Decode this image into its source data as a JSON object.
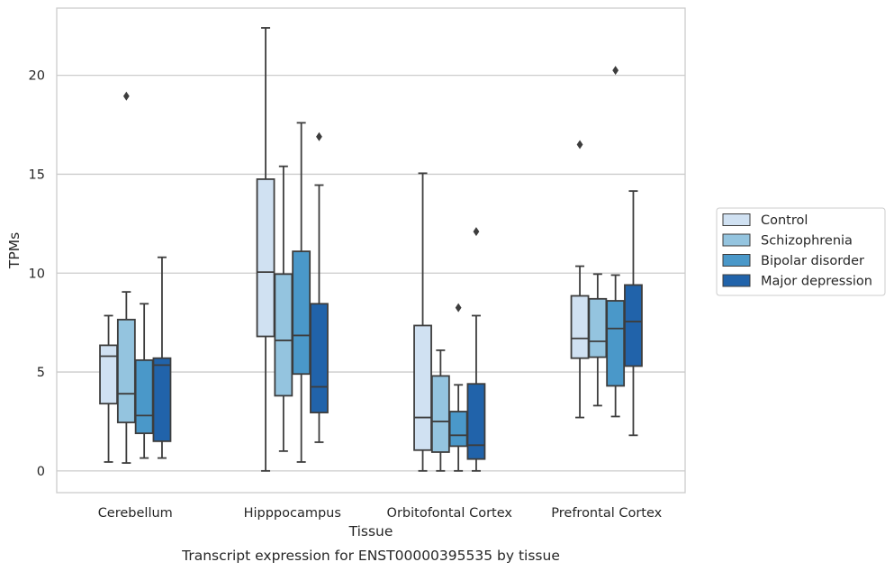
{
  "caption": "Transcript expression for ENST00000395535 by tissue",
  "chart_data": {
    "type": "box",
    "title": "",
    "xlabel": "Tissue",
    "ylabel": "TPMs",
    "ylim": [
      -1.1,
      23.4
    ],
    "yticks": [
      0,
      5,
      10,
      15,
      20
    ],
    "grid": "horizontal",
    "legend_position": "right",
    "categories": [
      "Cerebellum",
      "Hipppocampus",
      "Orbitofontal Cortex",
      "Prefrontal Cortex"
    ],
    "series": [
      {
        "name": "Control",
        "color": "#d0e1f2",
        "boxes": [
          {
            "whisker_low": 0.45,
            "q1": 3.4,
            "median": 5.8,
            "q3": 6.35,
            "whisker_high": 7.85,
            "outliers": []
          },
          {
            "whisker_low": 0.0,
            "q1": 6.8,
            "median": 10.05,
            "q3": 14.75,
            "whisker_high": 22.4,
            "outliers": []
          },
          {
            "whisker_low": 0.0,
            "q1": 1.05,
            "median": 2.7,
            "q3": 7.35,
            "whisker_high": 15.05,
            "outliers": []
          },
          {
            "whisker_low": 2.7,
            "q1": 5.7,
            "median": 6.7,
            "q3": 8.85,
            "whisker_high": 10.35,
            "outliers": [
              16.5
            ]
          }
        ]
      },
      {
        "name": "Schizophrenia",
        "color": "#94c4df",
        "boxes": [
          {
            "whisker_low": 0.4,
            "q1": 2.45,
            "median": 3.9,
            "q3": 7.65,
            "whisker_high": 9.05,
            "outliers": [
              18.95
            ]
          },
          {
            "whisker_low": 1.0,
            "q1": 3.8,
            "median": 6.6,
            "q3": 9.95,
            "whisker_high": 15.4,
            "outliers": []
          },
          {
            "whisker_low": 0.0,
            "q1": 0.95,
            "median": 2.5,
            "q3": 4.8,
            "whisker_high": 6.1,
            "outliers": []
          },
          {
            "whisker_low": 3.3,
            "q1": 5.75,
            "median": 6.55,
            "q3": 8.7,
            "whisker_high": 9.95,
            "outliers": []
          }
        ]
      },
      {
        "name": "Bipolar disorder",
        "color": "#4a98c9",
        "boxes": [
          {
            "whisker_low": 0.65,
            "q1": 1.9,
            "median": 2.8,
            "q3": 5.6,
            "whisker_high": 8.45,
            "outliers": []
          },
          {
            "whisker_low": 0.45,
            "q1": 4.9,
            "median": 6.85,
            "q3": 11.1,
            "whisker_high": 17.6,
            "outliers": []
          },
          {
            "whisker_low": 0.0,
            "q1": 1.25,
            "median": 1.8,
            "q3": 3.0,
            "whisker_high": 4.35,
            "outliers": [
              8.25
            ]
          },
          {
            "whisker_low": 2.75,
            "q1": 4.3,
            "median": 7.2,
            "q3": 8.6,
            "whisker_high": 9.9,
            "outliers": [
              20.25
            ]
          }
        ]
      },
      {
        "name": "Major depression",
        "color": "#2163aa",
        "boxes": [
          {
            "whisker_low": 0.65,
            "q1": 1.5,
            "median": 5.35,
            "q3": 5.7,
            "whisker_high": 10.8,
            "outliers": []
          },
          {
            "whisker_low": 1.45,
            "q1": 2.95,
            "median": 4.25,
            "q3": 8.45,
            "whisker_high": 14.45,
            "outliers": [
              16.9
            ]
          },
          {
            "whisker_low": 0.0,
            "q1": 0.6,
            "median": 1.3,
            "q3": 4.4,
            "whisker_high": 7.85,
            "outliers": [
              12.1
            ]
          },
          {
            "whisker_low": 1.8,
            "q1": 5.3,
            "median": 7.55,
            "q3": 9.4,
            "whisker_high": 14.15,
            "outliers": []
          }
        ]
      }
    ]
  }
}
